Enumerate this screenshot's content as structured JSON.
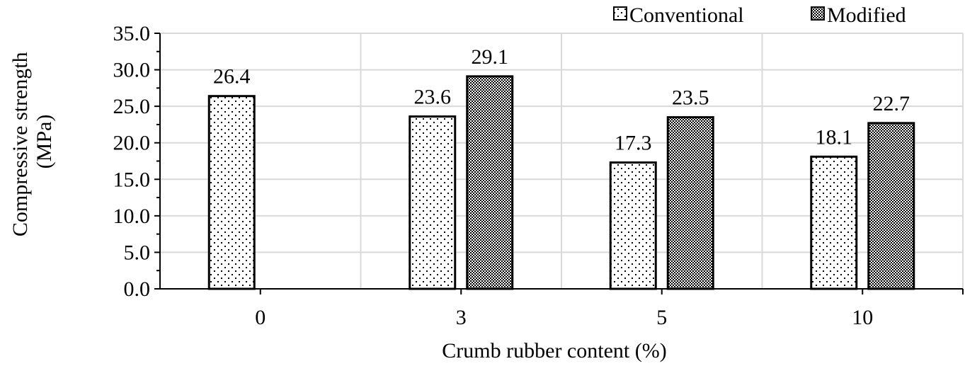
{
  "chart_data": {
    "type": "bar",
    "title": "",
    "xlabel": "Crumb rubber content (%)",
    "ylabel_lines": [
      "Compressive strength",
      "(MPa)"
    ],
    "categories": [
      "0",
      "3",
      "5",
      "10"
    ],
    "series": [
      {
        "name": "Conventional",
        "pattern": "dots-sparse",
        "values": [
          26.4,
          23.6,
          17.3,
          18.1
        ]
      },
      {
        "name": "Modified",
        "pattern": "checker-dense",
        "values": [
          null,
          29.1,
          23.5,
          22.7
        ]
      }
    ],
    "ylim": [
      0,
      35
    ],
    "yticks": [
      "0.0",
      "5.0",
      "10.0",
      "15.0",
      "20.0",
      "25.0",
      "30.0",
      "35.0"
    ],
    "ytick_values": [
      0,
      5,
      10,
      15,
      20,
      25,
      30,
      35
    ],
    "grid": true,
    "legend_position": "top-right",
    "colors": {
      "bar_stroke": "#000000",
      "grid": "#d9d9d9",
      "axis": "#000000",
      "background": "#ffffff"
    }
  }
}
